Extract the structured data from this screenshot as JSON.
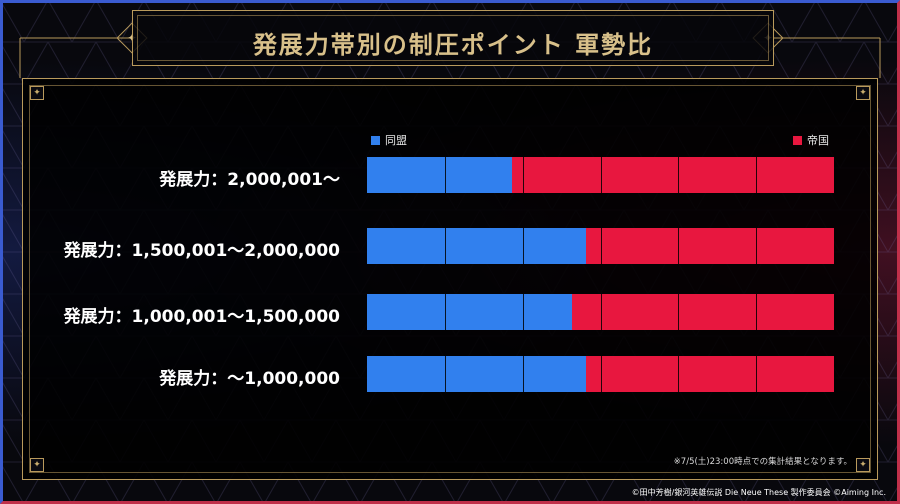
{
  "header": {
    "title": "発展力帯別の制圧ポイント 軍勢比"
  },
  "colors": {
    "alliance": "#3180ee",
    "empire": "#e8173f",
    "gold": "#b99a5c"
  },
  "chart_data": {
    "type": "bar",
    "orientation": "horizontal",
    "stacked": true,
    "normalized": true,
    "categories": [
      "発展力：2,000,001〜",
      "発展力：1,500,001〜2,000,000",
      "発展力：1,000,001〜1,500,000",
      "発展力：〜1,000,000"
    ],
    "series": [
      {
        "name": "同盟",
        "values": [
          31,
          47,
          44,
          47
        ]
      },
      {
        "name": "帝国",
        "values": [
          69,
          53,
          56,
          53
        ]
      }
    ],
    "xlim": [
      0,
      100
    ],
    "grid_divisions": 6,
    "grid": true,
    "legend": "top"
  },
  "footnote": "※7/5(土)23:00時点での集計結果となります。",
  "copyright": "©田中芳樹/銀河英雄伝説 Die Neue These 製作委員会 ©Aiming Inc."
}
